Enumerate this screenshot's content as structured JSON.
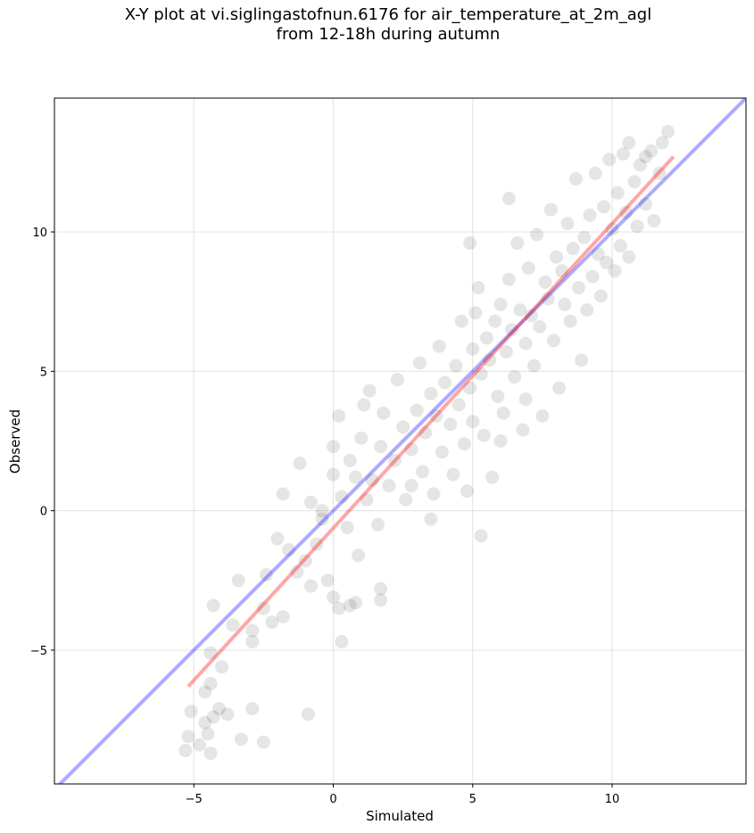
{
  "chart_data": {
    "type": "scatter",
    "title_lines": [
      "X-Y plot at vi.siglingastofnun.6176 for air_temperature_at_2m_agl",
      "from 12-18h during autumn"
    ],
    "xlabel": "Simulated",
    "ylabel": "Observed",
    "xlim": [
      -10,
      14.8
    ],
    "ylim": [
      -9.8,
      14.8
    ],
    "xticks": [
      -5,
      0,
      5,
      10
    ],
    "yticks": [
      -5,
      0,
      5,
      10
    ],
    "xtick_labels": [
      "−5",
      "0",
      "5",
      "10"
    ],
    "ytick_labels": [
      "−5",
      "0",
      "5",
      "10"
    ],
    "grid": true,
    "identity_line": {
      "color": "#0000ff",
      "x": [
        -10,
        14.8
      ],
      "y": [
        -10,
        14.8
      ]
    },
    "fit_line": {
      "color": "#ff0000",
      "x": [
        -5.2,
        12.2
      ],
      "y": [
        -6.3,
        12.7
      ]
    },
    "point_color": "#000000",
    "series": [
      {
        "points": [
          [
            -5.3,
            -8.6
          ],
          [
            -5.2,
            -8.1
          ],
          [
            -5.1,
            -7.2
          ],
          [
            -4.8,
            -8.4
          ],
          [
            -4.6,
            -7.6
          ],
          [
            -4.5,
            -8.0
          ],
          [
            -4.6,
            -6.5
          ],
          [
            -4.4,
            -6.2
          ],
          [
            -4.3,
            -7.4
          ],
          [
            -4.1,
            -7.1
          ],
          [
            -4.0,
            -5.6
          ],
          [
            -4.4,
            -5.1
          ],
          [
            -3.8,
            -7.3
          ],
          [
            -3.6,
            -4.1
          ],
          [
            -3.4,
            -2.5
          ],
          [
            -4.3,
            -3.4
          ],
          [
            -4.4,
            -8.7
          ],
          [
            -3.3,
            -8.2
          ],
          [
            -2.5,
            -8.3
          ],
          [
            -2.9,
            -7.1
          ],
          [
            -0.9,
            -7.3
          ],
          [
            -2.9,
            -4.7
          ],
          [
            -2.9,
            -4.3
          ],
          [
            -2.5,
            -3.5
          ],
          [
            -2.2,
            -4.0
          ],
          [
            -1.8,
            -3.8
          ],
          [
            -2.4,
            -2.3
          ],
          [
            -2.0,
            -1.0
          ],
          [
            -1.6,
            -1.4
          ],
          [
            -1.3,
            -2.2
          ],
          [
            -1.0,
            -1.8
          ],
          [
            -0.8,
            -2.7
          ],
          [
            -0.6,
            -1.2
          ],
          [
            -0.4,
            -0.3
          ],
          [
            -0.2,
            -2.5
          ],
          [
            0.0,
            -3.1
          ],
          [
            0.2,
            -3.5
          ],
          [
            0.3,
            -4.7
          ],
          [
            0.6,
            -3.4
          ],
          [
            0.8,
            -3.3
          ],
          [
            1.7,
            -2.8
          ],
          [
            1.7,
            -3.2
          ],
          [
            -1.8,
            0.6
          ],
          [
            -1.2,
            1.7
          ],
          [
            -0.8,
            0.3
          ],
          [
            -0.4,
            0.0
          ],
          [
            0.0,
            1.3
          ],
          [
            0.0,
            2.3
          ],
          [
            0.2,
            3.4
          ],
          [
            0.3,
            0.5
          ],
          [
            0.5,
            -0.6
          ],
          [
            0.6,
            1.8
          ],
          [
            0.8,
            1.2
          ],
          [
            0.9,
            -1.6
          ],
          [
            1.0,
            2.6
          ],
          [
            1.2,
            0.4
          ],
          [
            1.1,
            3.8
          ],
          [
            1.3,
            4.3
          ],
          [
            1.4,
            1.1
          ],
          [
            1.6,
            -0.5
          ],
          [
            1.7,
            2.3
          ],
          [
            1.8,
            3.5
          ],
          [
            2.0,
            0.9
          ],
          [
            2.2,
            1.8
          ],
          [
            2.3,
            4.7
          ],
          [
            2.5,
            3.0
          ],
          [
            2.6,
            0.4
          ],
          [
            2.8,
            2.2
          ],
          [
            3.0,
            3.6
          ],
          [
            3.1,
            5.3
          ],
          [
            3.2,
            1.4
          ],
          [
            3.3,
            2.8
          ],
          [
            3.5,
            4.2
          ],
          [
            3.6,
            0.6
          ],
          [
            3.7,
            3.4
          ],
          [
            3.8,
            5.9
          ],
          [
            3.9,
            2.1
          ],
          [
            4.0,
            4.6
          ],
          [
            4.2,
            3.1
          ],
          [
            4.3,
            1.3
          ],
          [
            4.4,
            5.2
          ],
          [
            4.5,
            3.8
          ],
          [
            4.6,
            6.8
          ],
          [
            4.7,
            2.4
          ],
          [
            4.8,
            0.7
          ],
          [
            4.9,
            4.4
          ],
          [
            5.0,
            5.8
          ],
          [
            5.0,
            3.2
          ],
          [
            5.1,
            7.1
          ],
          [
            5.2,
            8.0
          ],
          [
            5.3,
            4.9
          ],
          [
            5.4,
            2.7
          ],
          [
            5.5,
            6.2
          ],
          [
            5.6,
            5.4
          ],
          [
            5.7,
            1.2
          ],
          [
            5.8,
            6.8
          ],
          [
            5.9,
            4.1
          ],
          [
            6.0,
            7.4
          ],
          [
            6.1,
            3.5
          ],
          [
            6.2,
            5.7
          ],
          [
            6.3,
            8.3
          ],
          [
            6.4,
            6.5
          ],
          [
            6.5,
            4.8
          ],
          [
            6.6,
            9.6
          ],
          [
            6.7,
            7.2
          ],
          [
            6.8,
            2.9
          ],
          [
            6.9,
            6.0
          ],
          [
            7.0,
            8.7
          ],
          [
            7.1,
            7.0
          ],
          [
            7.2,
            5.2
          ],
          [
            7.3,
            9.9
          ],
          [
            7.4,
            6.6
          ],
          [
            7.5,
            3.4
          ],
          [
            7.6,
            8.2
          ],
          [
            7.7,
            7.6
          ],
          [
            7.8,
            10.8
          ],
          [
            7.9,
            6.1
          ],
          [
            8.0,
            9.1
          ],
          [
            8.1,
            4.4
          ],
          [
            8.2,
            8.6
          ],
          [
            8.3,
            7.4
          ],
          [
            8.4,
            10.3
          ],
          [
            8.5,
            6.8
          ],
          [
            8.6,
            9.4
          ],
          [
            8.7,
            11.9
          ],
          [
            8.8,
            8.0
          ],
          [
            8.9,
            5.4
          ],
          [
            9.0,
            9.8
          ],
          [
            9.1,
            7.2
          ],
          [
            9.2,
            10.6
          ],
          [
            9.3,
            8.4
          ],
          [
            9.4,
            12.1
          ],
          [
            9.5,
            9.2
          ],
          [
            9.6,
            7.7
          ],
          [
            9.7,
            10.9
          ],
          [
            9.8,
            8.9
          ],
          [
            9.9,
            12.6
          ],
          [
            10.0,
            10.1
          ],
          [
            10.1,
            8.6
          ],
          [
            10.2,
            11.4
          ],
          [
            10.3,
            9.5
          ],
          [
            10.4,
            12.8
          ],
          [
            10.5,
            10.7
          ],
          [
            10.6,
            9.1
          ],
          [
            10.8,
            11.8
          ],
          [
            10.9,
            10.2
          ],
          [
            11.0,
            12.4
          ],
          [
            11.2,
            11.0
          ],
          [
            11.4,
            12.9
          ],
          [
            11.5,
            10.4
          ],
          [
            11.7,
            12.1
          ],
          [
            11.8,
            13.2
          ],
          [
            12.0,
            13.6
          ],
          [
            5.3,
            -0.9
          ],
          [
            4.9,
            9.6
          ],
          [
            6.3,
            11.2
          ],
          [
            10.6,
            13.2
          ],
          [
            11.2,
            12.7
          ],
          [
            6.9,
            4.0
          ],
          [
            3.5,
            -0.3
          ],
          [
            2.8,
            0.9
          ],
          [
            6.0,
            2.5
          ]
        ]
      }
    ]
  }
}
